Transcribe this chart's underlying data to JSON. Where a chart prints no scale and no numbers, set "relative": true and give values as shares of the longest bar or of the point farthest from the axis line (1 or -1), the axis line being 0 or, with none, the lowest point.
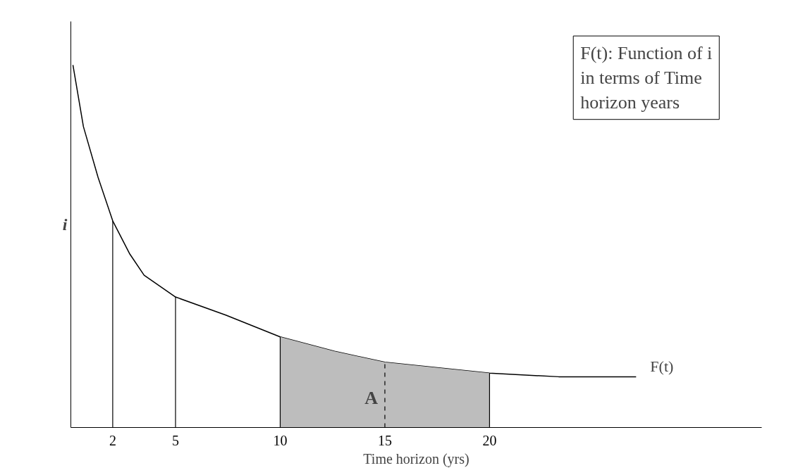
{
  "chart_data": {
    "type": "line",
    "relative": true,
    "xlabel": "Time horizon (yrs)",
    "ylabel": "i",
    "xlim": [
      0,
      33
    ],
    "xticks": [
      2,
      5,
      10,
      15,
      20
    ],
    "grid": false,
    "marker": "none",
    "line_style": "solid",
    "series": [
      {
        "name": "F(t)",
        "color": "#000000",
        "x": [
          0.1,
          0.6,
          1.3,
          2,
          2.8,
          3.5,
          5,
          7.4,
          10,
          12.6,
          15,
          20,
          23.3,
          25.4,
          27
        ],
        "values": [
          1.0,
          0.83,
          0.69,
          0.57,
          0.48,
          0.42,
          0.36,
          0.31,
          0.25,
          0.21,
          0.18,
          0.15,
          0.14,
          0.14,
          0.14
        ]
      },
      {
        "type": "area",
        "color": "#bdbdbd",
        "x": [
          10,
          12.6,
          15,
          20
        ],
        "values": [
          0.25,
          0.21,
          0.18,
          0.15
        ]
      }
    ],
    "ref_lines": [
      {
        "axis": "x",
        "value": 2,
        "line_style": "solid"
      },
      {
        "axis": "x",
        "value": 5,
        "line_style": "solid"
      },
      {
        "axis": "x",
        "value": 10,
        "line_style": "solid"
      },
      {
        "axis": "x",
        "value": 15,
        "line_style": "dashed"
      },
      {
        "axis": "x",
        "value": 20,
        "line_style": "solid"
      }
    ],
    "legend": false,
    "annotations": [
      "A",
      "F(t): Function of i in terms of Time horizon years"
    ]
  }
}
